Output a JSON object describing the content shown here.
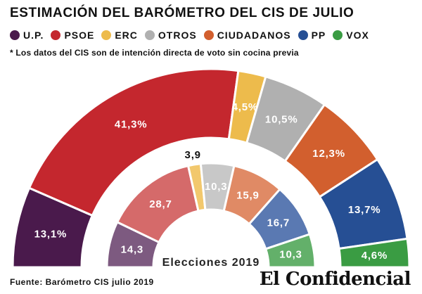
{
  "title": "ESTIMACIÓN DEL BARÓMETRO DEL CIS DE JULIO",
  "note": "* Los datos del CIS son de intención directa de voto sin cocina previa",
  "legend": [
    {
      "name": "U.P.",
      "color": "#4a1a4c"
    },
    {
      "name": "PSOE",
      "color": "#c4272e"
    },
    {
      "name": "ERC",
      "color": "#edbb4c"
    },
    {
      "name": "OTROS",
      "color": "#b0b0b0"
    },
    {
      "name": "CIUDADANOS",
      "color": "#d25f2e"
    },
    {
      "name": "PP",
      "color": "#264f94"
    },
    {
      "name": "VOX",
      "color": "#3a9c43"
    }
  ],
  "source": "Fuente: Barómetro CIS julio 2019",
  "brand": "El Confidencial",
  "chart_data": [
    {
      "type": "pie",
      "shape": "semicircle",
      "ring": "outer",
      "categories": [
        "U.P.",
        "PSOE",
        "ERC",
        "OTROS",
        "CIUDADANOS",
        "PP",
        "VOX"
      ],
      "values": [
        13.1,
        41.3,
        4.5,
        10.5,
        12.3,
        13.7,
        4.6
      ],
      "labels": [
        "13,1%",
        "41,3%",
        "4,5%",
        "10,5%",
        "12,3%",
        "13,7%",
        "4,6%"
      ],
      "colors": [
        "#4a1a4c",
        "#c4272e",
        "#edbb4c",
        "#b0b0b0",
        "#d25f2e",
        "#264f94",
        "#3a9c43"
      ]
    },
    {
      "type": "pie",
      "shape": "semicircle",
      "ring": "inner",
      "center_label": "Elecciones 2019",
      "categories": [
        "U.P.",
        "PSOE",
        "ERC",
        "OTROS",
        "CIUDADANOS",
        "PP",
        "VOX"
      ],
      "values": [
        14.3,
        28.7,
        3.9,
        10.3,
        15.9,
        16.7,
        10.3
      ],
      "labels": [
        "14,3",
        "28,7",
        "3,9",
        "10,3",
        "15,9",
        "16,7",
        "10,3"
      ],
      "colors": [
        "#7d5a80",
        "#d56a6a",
        "#f2c86d",
        "#c8c8c8",
        "#e08a65",
        "#5a79b2",
        "#63b06a"
      ]
    }
  ]
}
